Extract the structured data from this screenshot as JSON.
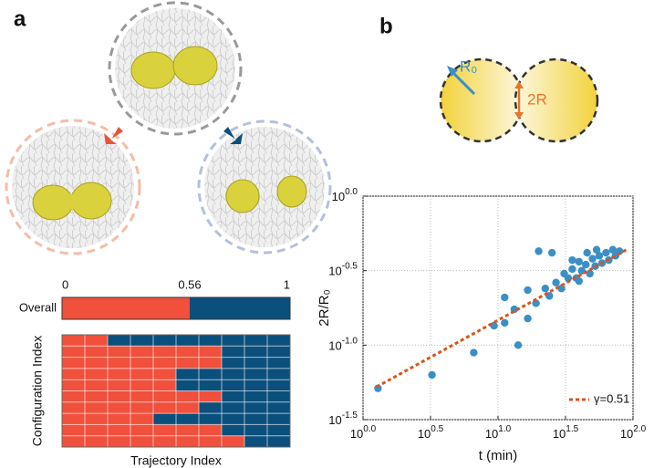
{
  "panel_labels": [
    "a",
    "b"
  ],
  "diagram": {
    "radius_label": "R₀",
    "gap_label": "2R"
  },
  "chart_data": [
    {
      "type": "stacked-bar",
      "categories": [
        "Overall"
      ],
      "series": [
        {
          "color": "#f0503c",
          "values": [
            0.56
          ]
        },
        {
          "color": "#0b4f7c",
          "values": [
            0.44
          ]
        }
      ],
      "xlim": [
        0,
        1
      ],
      "xticks": [
        0,
        0.56,
        1
      ]
    },
    {
      "type": "stacked-bar",
      "ylabel": "Configuration Index",
      "xlabel": "Trajectory Index",
      "categories": [
        null,
        null,
        null,
        null,
        null,
        null,
        null,
        null,
        null,
        null
      ],
      "series": [
        {
          "color": "#f0503c",
          "values": [
            2,
            7,
            7,
            5,
            5,
            7,
            6,
            4,
            7,
            8
          ]
        },
        {
          "color": "#0b4f7c",
          "values": [
            8,
            3,
            3,
            5,
            5,
            3,
            4,
            6,
            3,
            2
          ]
        }
      ],
      "xlim": [
        0,
        10
      ],
      "grid": true
    },
    {
      "type": "scatter",
      "xlabel": "t (min)",
      "ylabel": "2R/R₀",
      "xscale": "log",
      "yscale": "log",
      "xlim": [
        1,
        100
      ],
      "ylim": [
        0.0316228,
        1
      ],
      "xticks": [
        {
          "value": 1,
          "label": "10^0.0"
        },
        {
          "value": 3.16228,
          "label": "10^0.5"
        },
        {
          "value": 10,
          "label": "10^1.0"
        },
        {
          "value": 31.6228,
          "label": "10^1.5"
        },
        {
          "value": 100,
          "label": "10^2.0"
        }
      ],
      "yticks": [
        {
          "value": 0.0316228,
          "label": "10^-1.5"
        },
        {
          "value": 0.1,
          "label": "10^-1.0"
        },
        {
          "value": 0.316228,
          "label": "10^-0.5"
        },
        {
          "value": 1,
          "label": "10^0.0"
        }
      ],
      "grid": true,
      "legend": "lower right",
      "series": [
        {
          "type": "scatter",
          "color": "#3a8fc7",
          "x": [
            1.29,
            3.24,
            6.61,
            9.33,
            14.1,
            11.2,
            13.2,
            16.6,
            19.1,
            22.4,
            24.0,
            26.9,
            29.5,
            30.9,
            33.1,
            35.5,
            38.0,
            39.8,
            41.7,
            44.7,
            47.9,
            50.1,
            52.5,
            56.2,
            58.9,
            63.1,
            66.1,
            70.8,
            74.1,
            25.1,
            20.0,
            16.6,
            11.2,
            39.8,
            45.7,
            53.7,
            79.4,
            35.5
          ],
          "values": [
            0.0513,
            0.0631,
            0.0891,
            0.135,
            0.1,
            0.141,
            0.174,
            0.151,
            0.191,
            0.24,
            0.214,
            0.263,
            0.24,
            0.302,
            0.282,
            0.324,
            0.282,
            0.363,
            0.316,
            0.347,
            0.302,
            0.38,
            0.339,
            0.398,
            0.355,
            0.417,
            0.372,
            0.437,
            0.398,
            0.417,
            0.427,
            0.234,
            0.209,
            0.269,
            0.417,
            0.437,
            0.427,
            0.372
          ]
        },
        {
          "type": "line",
          "name": "γ=0.51",
          "color": "#d9541a",
          "dash": true,
          "x": [
            1.26,
            89.1
          ],
          "values": [
            0.0525,
            0.436
          ]
        }
      ]
    }
  ]
}
